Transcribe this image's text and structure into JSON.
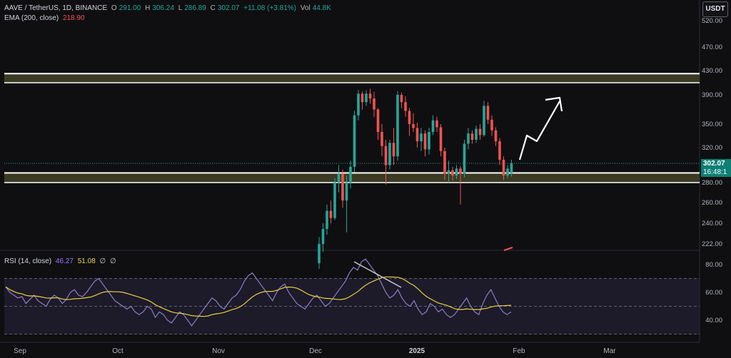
{
  "header": {
    "symbol": "AAVE / TetherUS, 1D, BINANCE",
    "open_label": "O",
    "open": "291.00",
    "high_label": "H",
    "high": "306.24",
    "low_label": "L",
    "low": "286.89",
    "close_label": "C",
    "close": "302.07",
    "change": "+11.08 (+3.81%)",
    "vol_label": "Vol",
    "vol": "44.8K"
  },
  "ema_legend": {
    "label": "EMA (200, close)",
    "value": "218.90"
  },
  "rsi_legend": {
    "label": "RSI (14, close)",
    "value": "46.27",
    "ma_value": "51.08",
    "extra1": "∅",
    "extra2": "∅"
  },
  "currency": "USDT",
  "last_price": {
    "value": "302.07",
    "countdown": "16:48:1"
  },
  "colors": {
    "up": "#26a69a",
    "down": "#ef5350",
    "zone": "#3b3a22",
    "zone_line": "#ffffff",
    "rsi_line": "#8e7cc3",
    "rsi_ma": "#e8d03c",
    "rsi_band": "#2a2440"
  },
  "chart_data": {
    "type": "candlestick",
    "price_axis": {
      "ticks": [
        "520.00",
        "470.00",
        "430.00",
        "390.00",
        "350.00",
        "320.00",
        "280.00",
        "260.00",
        "240.00",
        "222.00"
      ]
    },
    "time_axis": {
      "labels": [
        "Sep",
        "Oct",
        "Nov",
        "Dec",
        "2025",
        "Feb",
        "Mar"
      ]
    },
    "zones": [
      {
        "from": 410,
        "to": 425
      },
      {
        "from": 280,
        "to": 291
      }
    ],
    "candles": [
      {
        "o": 205,
        "h": 228,
        "l": 200,
        "c": 222
      },
      {
        "o": 222,
        "h": 240,
        "l": 215,
        "c": 235
      },
      {
        "o": 235,
        "h": 258,
        "l": 230,
        "c": 252
      },
      {
        "o": 252,
        "h": 262,
        "l": 240,
        "c": 245
      },
      {
        "o": 245,
        "h": 285,
        "l": 243,
        "c": 280
      },
      {
        "o": 280,
        "h": 300,
        "l": 270,
        "c": 290
      },
      {
        "o": 290,
        "h": 295,
        "l": 255,
        "c": 262
      },
      {
        "o": 262,
        "h": 288,
        "l": 232,
        "c": 280
      },
      {
        "o": 280,
        "h": 305,
        "l": 274,
        "c": 298
      },
      {
        "o": 298,
        "h": 368,
        "l": 292,
        "c": 362
      },
      {
        "o": 362,
        "h": 398,
        "l": 355,
        "c": 392
      },
      {
        "o": 392,
        "h": 396,
        "l": 370,
        "c": 380
      },
      {
        "o": 380,
        "h": 398,
        "l": 375,
        "c": 392
      },
      {
        "o": 392,
        "h": 400,
        "l": 378,
        "c": 385
      },
      {
        "o": 385,
        "h": 395,
        "l": 360,
        "c": 370
      },
      {
        "o": 370,
        "h": 372,
        "l": 330,
        "c": 340
      },
      {
        "o": 340,
        "h": 350,
        "l": 310,
        "c": 322
      },
      {
        "o": 322,
        "h": 330,
        "l": 278,
        "c": 300
      },
      {
        "o": 300,
        "h": 330,
        "l": 295,
        "c": 326
      },
      {
        "o": 326,
        "h": 345,
        "l": 300,
        "c": 310
      },
      {
        "o": 310,
        "h": 396,
        "l": 305,
        "c": 390
      },
      {
        "o": 390,
        "h": 394,
        "l": 372,
        "c": 380
      },
      {
        "o": 380,
        "h": 388,
        "l": 360,
        "c": 368
      },
      {
        "o": 368,
        "h": 372,
        "l": 335,
        "c": 350
      },
      {
        "o": 350,
        "h": 365,
        "l": 340,
        "c": 345
      },
      {
        "o": 345,
        "h": 352,
        "l": 320,
        "c": 328
      },
      {
        "o": 328,
        "h": 345,
        "l": 316,
        "c": 338
      },
      {
        "o": 338,
        "h": 342,
        "l": 310,
        "c": 318
      },
      {
        "o": 318,
        "h": 345,
        "l": 312,
        "c": 340
      },
      {
        "o": 340,
        "h": 362,
        "l": 336,
        "c": 355
      },
      {
        "o": 355,
        "h": 360,
        "l": 340,
        "c": 346
      },
      {
        "o": 346,
        "h": 350,
        "l": 310,
        "c": 316
      },
      {
        "o": 316,
        "h": 320,
        "l": 283,
        "c": 290
      },
      {
        "o": 290,
        "h": 305,
        "l": 280,
        "c": 294
      },
      {
        "o": 294,
        "h": 298,
        "l": 282,
        "c": 288
      },
      {
        "o": 288,
        "h": 300,
        "l": 284,
        "c": 296
      },
      {
        "o": 296,
        "h": 299,
        "l": 258,
        "c": 290
      },
      {
        "o": 290,
        "h": 330,
        "l": 286,
        "c": 325
      },
      {
        "o": 325,
        "h": 345,
        "l": 318,
        "c": 338
      },
      {
        "o": 338,
        "h": 342,
        "l": 325,
        "c": 330
      },
      {
        "o": 330,
        "h": 348,
        "l": 326,
        "c": 344
      },
      {
        "o": 344,
        "h": 350,
        "l": 330,
        "c": 336
      },
      {
        "o": 336,
        "h": 382,
        "l": 334,
        "c": 375
      },
      {
        "o": 375,
        "h": 380,
        "l": 350,
        "c": 356
      },
      {
        "o": 356,
        "h": 362,
        "l": 335,
        "c": 342
      },
      {
        "o": 342,
        "h": 346,
        "l": 322,
        "c": 328
      },
      {
        "o": 328,
        "h": 332,
        "l": 300,
        "c": 306
      },
      {
        "o": 306,
        "h": 310,
        "l": 283,
        "c": 288
      },
      {
        "o": 288,
        "h": 300,
        "l": 285,
        "c": 296
      },
      {
        "o": 291,
        "h": 306.24,
        "l": 286.89,
        "c": 302.07
      }
    ],
    "rsi": [
      64,
      60,
      58,
      56,
      57,
      52,
      55,
      58,
      54,
      52,
      50,
      55,
      58,
      56,
      52,
      55,
      60,
      62,
      58,
      57,
      60,
      64,
      68,
      70,
      66,
      62,
      58,
      54,
      52,
      50,
      48,
      50,
      46,
      44,
      46,
      50,
      48,
      42,
      46,
      44,
      40,
      38,
      42,
      46,
      44,
      40,
      36,
      40,
      44,
      48,
      52,
      56,
      54,
      50,
      48,
      52,
      56,
      58,
      62,
      68,
      72,
      74,
      70,
      66,
      62,
      58,
      54,
      60,
      64,
      66,
      60,
      56,
      52,
      50,
      48,
      52,
      56,
      58,
      54,
      50,
      52,
      56,
      60,
      64,
      68,
      74,
      78,
      76,
      82,
      84,
      80,
      76,
      72,
      66,
      60,
      56,
      58,
      62,
      56,
      52,
      50,
      54,
      48,
      44,
      46,
      52,
      50,
      46,
      48,
      44,
      42,
      44,
      48,
      52,
      56,
      50,
      46,
      44,
      52,
      58,
      62,
      56,
      50,
      46,
      44,
      46
    ],
    "rsi_axis": {
      "ticks": [
        "80.00",
        "60.00",
        "40.00"
      ]
    }
  }
}
